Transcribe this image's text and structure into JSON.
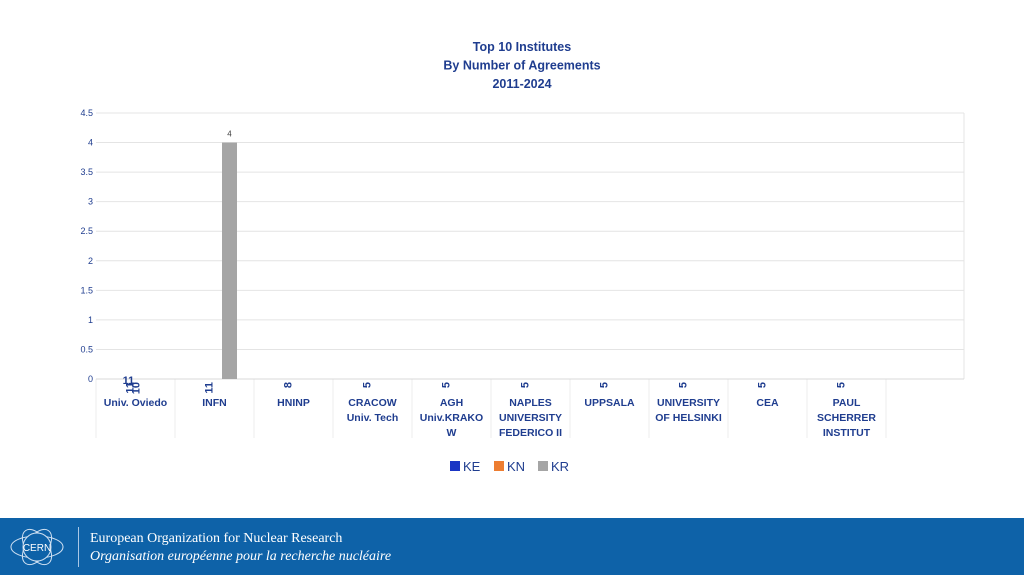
{
  "chart_data": {
    "type": "bar",
    "title_lines": [
      "Top 10 Institutes",
      "By Number of Agreements",
      "2011-2024"
    ],
    "categories": [
      [
        "Univ. Oviedo"
      ],
      [
        "INFN"
      ],
      [
        "HNINP"
      ],
      [
        "CRACOW",
        "Univ. Tech"
      ],
      [
        "AGH",
        "Univ.KRAKO",
        "W"
      ],
      [
        "NAPLES",
        "UNIVERSITY",
        "FEDERICO II"
      ],
      [
        "UPPSALA"
      ],
      [
        "UNIVERSITY",
        "OF HELSINKI"
      ],
      [
        "CEA"
      ],
      [
        "PAUL",
        "SCHERRER",
        "INSTITUT"
      ]
    ],
    "totals": [
      "11",
      "11",
      "8",
      "5",
      "5",
      "5",
      "5",
      "5",
      "5",
      "5"
    ],
    "series": [
      {
        "name": "KE",
        "color": "#1a35c4",
        "values": [
          null,
          null,
          null,
          null,
          null,
          null,
          null,
          null,
          null,
          null
        ]
      },
      {
        "name": "KN",
        "color": "#ed7d31",
        "values": [
          null,
          null,
          null,
          null,
          null,
          null,
          null,
          null,
          null,
          null
        ]
      },
      {
        "name": "KR",
        "color": "#a5a5a5",
        "values": [
          null,
          4,
          null,
          null,
          null,
          null,
          null,
          null,
          null,
          null
        ]
      }
    ],
    "extra_labels": [
      {
        "category": 0,
        "text": "10"
      }
    ],
    "yticks": [
      "0",
      "0.5",
      "1",
      "1.5",
      "2",
      "2.5",
      "3",
      "3.5",
      "4",
      "4.5"
    ],
    "ylim": [
      0,
      4.5
    ],
    "grid": true,
    "legend_position": "bottom",
    "xlabel": "",
    "ylabel": ""
  },
  "footer": {
    "line1": "European Organization for Nuclear Research",
    "line2": "Organisation européenne pour la recherche nucléaire",
    "logo_text": "CERN",
    "logo_icon": "cern-logo-icon",
    "color": "#0e62a8"
  }
}
